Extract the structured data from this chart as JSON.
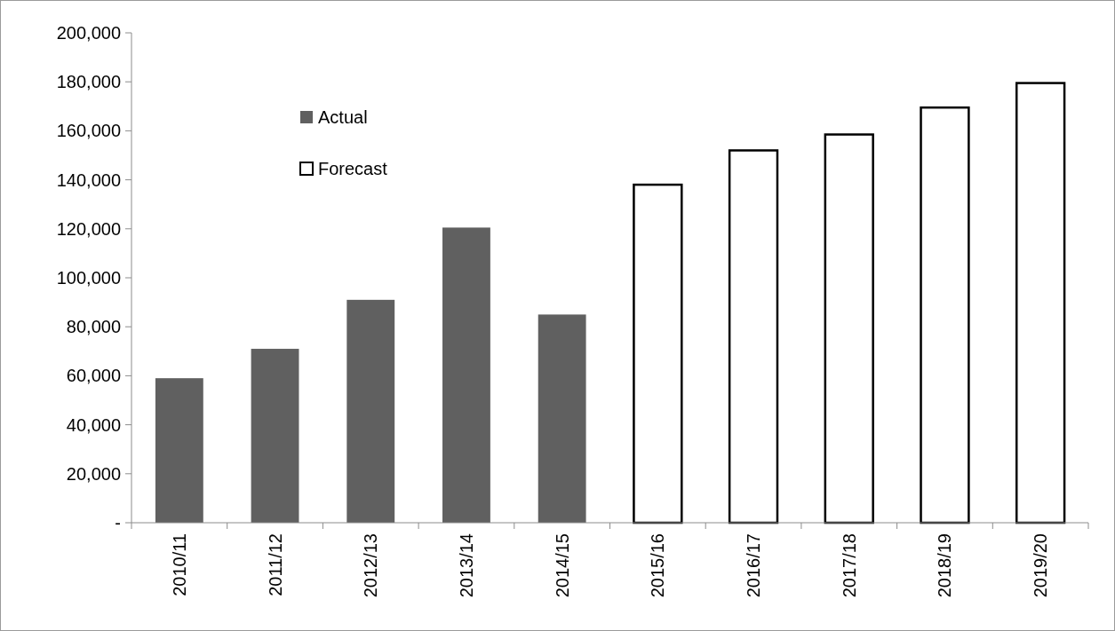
{
  "chart_data": {
    "type": "bar",
    "categories": [
      "2010/11",
      "2011/12",
      "2012/13",
      "2013/14",
      "2014/15",
      "2015/16",
      "2016/17",
      "2017/18",
      "2018/19",
      "2019/20"
    ],
    "series": [
      {
        "name": "Actual",
        "color": "#606060",
        "values": [
          59000,
          71000,
          91000,
          120500,
          85000,
          null,
          null,
          null,
          null,
          null
        ]
      },
      {
        "name": "Forecast",
        "color": "#ffffff",
        "values": [
          null,
          null,
          null,
          null,
          null,
          138000,
          152000,
          158500,
          169500,
          179500
        ]
      }
    ],
    "stacked": true,
    "ylim": [
      0,
      200000
    ],
    "yticks": [
      {
        "value": 0,
        "label": "-"
      },
      {
        "value": 20000,
        "label": "20,000"
      },
      {
        "value": 40000,
        "label": "40,000"
      },
      {
        "value": 60000,
        "label": "60,000"
      },
      {
        "value": 80000,
        "label": "80,000"
      },
      {
        "value": 100000,
        "label": "100,000"
      },
      {
        "value": 120000,
        "label": "120,000"
      },
      {
        "value": 140000,
        "label": "140,000"
      },
      {
        "value": 160000,
        "label": "160,000"
      },
      {
        "value": 180000,
        "label": "180,000"
      },
      {
        "value": 200000,
        "label": "200,000"
      }
    ],
    "grid": false,
    "legend": "top left"
  }
}
